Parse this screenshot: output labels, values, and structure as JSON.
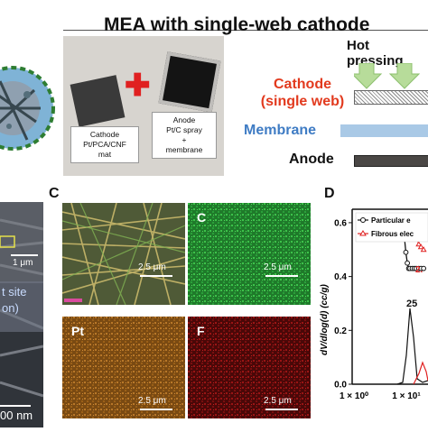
{
  "header": {
    "title": "MEA with single-web cathode"
  },
  "photo": {
    "cathode_lines": [
      "Cathode",
      "Pt/PCA/CNF",
      "mat"
    ],
    "anode_lines": [
      "Anode",
      "Pt/C spray",
      "+",
      "membrane"
    ]
  },
  "hot_pressing": {
    "label": "Hot pressing"
  },
  "layers": {
    "cathode_line1": "Cathode",
    "cathode_line2": "(single web)",
    "membrane": "Membrane",
    "anode": "Anode"
  },
  "colors": {
    "cathode_label": "#e23a1e",
    "membrane_label": "#3f7cc4",
    "anode_label": "#111111",
    "membrane_bar": "#a9c9e6",
    "anode_bar": "#4a4745"
  },
  "panel_left": {
    "scale_1": "1 μm",
    "site_text_1": "t site",
    "site_text_2": "on)",
    "scale_2": "00 nm"
  },
  "panel_c": {
    "letter": "C",
    "maps": [
      {
        "element": "",
        "scale": "2.5 μm"
      },
      {
        "element": "C",
        "scale": "2.5 μm"
      },
      {
        "element": "Pt",
        "scale": "2.5 μm"
      },
      {
        "element": "F",
        "scale": "2.5 μm"
      }
    ]
  },
  "panel_d": {
    "letter": "D",
    "ylabel": "dV/dlog(d) (cc/g)",
    "yticks": [
      "0.6",
      "0.4",
      "0.2",
      "0.0"
    ],
    "xticks": [
      "1 × 10⁰",
      "1 × 10¹"
    ],
    "legend": [
      "Particular e",
      "Fibrous elec"
    ],
    "annotation_1": "2.",
    "annotation_2": "25"
  },
  "chart_data": {
    "type": "line",
    "ylabel": "dV/dlog(d) (cc/g)",
    "ylim": [
      0.0,
      0.65
    ],
    "xscale": "log",
    "x_ticks": [
      "1 × 10⁰",
      "1 × 10¹"
    ],
    "series": [
      {
        "name": "Particular e",
        "color": "#111111",
        "x": [
          8,
          9,
          10,
          11,
          12,
          13,
          14,
          15,
          16,
          18,
          20,
          22,
          25,
          28,
          32
        ],
        "y": [
          0.6,
          0.6,
          0.6,
          0.59,
          0.55,
          0.49,
          0.45,
          0.43,
          0.43,
          0.43,
          0.43,
          0.43,
          0.43,
          0.43,
          0.43
        ]
      },
      {
        "name": "Fibrous elec",
        "color": "#e02020",
        "x": [
          8,
          10,
          12,
          14,
          16,
          18,
          20,
          22,
          25,
          28,
          32
        ],
        "y": [
          0.62,
          0.62,
          0.62,
          0.62,
          0.62,
          0.61,
          0.59,
          0.55,
          0.52,
          0.51,
          0.5
        ]
      }
    ]
  }
}
